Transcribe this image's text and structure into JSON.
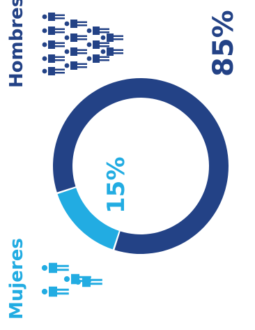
{
  "colors": {
    "hombres": "#234286",
    "mujeres": "#22ace2"
  },
  "chart_data": {
    "type": "pie",
    "series": [
      {
        "name": "Hombres",
        "value": 85,
        "color": "#234286",
        "label": "85%"
      },
      {
        "name": "Mujeres",
        "value": 15,
        "color": "#22ace2",
        "label": "15%"
      }
    ]
  },
  "labels": {
    "hombres": "Hombres",
    "mujeres": "Mujeres"
  },
  "icons": {
    "hombres": "people-group-icon",
    "mujeres": "people-group-icon"
  }
}
